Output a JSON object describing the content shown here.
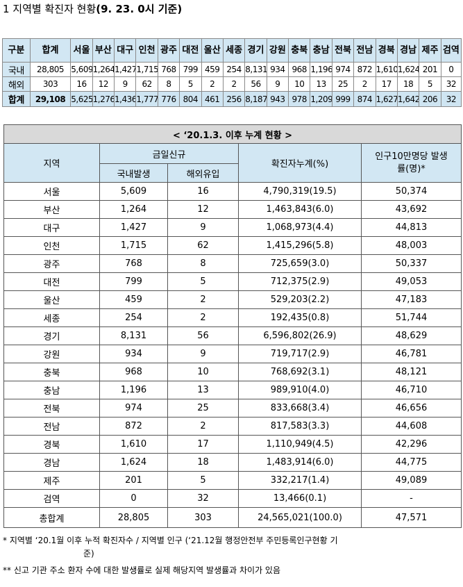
{
  "title": {
    "main": "1 지역별 확진자 현황",
    "date": "(9. 23. 0시 기준)"
  },
  "summary_table": {
    "headers": [
      "구분",
      "합계",
      "서울",
      "부산",
      "대구",
      "인천",
      "광주",
      "대전",
      "울산",
      "세종",
      "경기",
      "강원",
      "충북",
      "충남",
      "전북",
      "전남",
      "경북",
      "경남",
      "제주",
      "검역"
    ],
    "rows": [
      {
        "label": "국내",
        "values": [
          "28,805",
          "5,609",
          "1,264",
          "1,427",
          "1,715",
          "768",
          "799",
          "459",
          "254",
          "8,131",
          "934",
          "968",
          "1,196",
          "974",
          "872",
          "1,610",
          "1,624",
          "201",
          "0"
        ]
      },
      {
        "label": "해외",
        "values": [
          "303",
          "16",
          "12",
          "9",
          "62",
          "8",
          "5",
          "2",
          "2",
          "56",
          "9",
          "10",
          "13",
          "25",
          "2",
          "17",
          "18",
          "5",
          "32"
        ]
      },
      {
        "label": "합계",
        "values": [
          "29,108",
          "5,625",
          "1,276",
          "1,436",
          "1,777",
          "776",
          "804",
          "461",
          "256",
          "8,187",
          "943",
          "978",
          "1,209",
          "999",
          "874",
          "1,627",
          "1,642",
          "206",
          "32"
        ]
      }
    ]
  },
  "detail_table": {
    "caption": "< ‘20.1.3. 이후 누계 현황 >",
    "headers": {
      "region": "지역",
      "today_new": "금일신규",
      "domestic": "국내발생",
      "overseas": "해외유입",
      "cumulative": "확진자누계(%)",
      "rate": "인구10만명당 발생률(명)*"
    },
    "rows": [
      {
        "region": "서울",
        "domestic": "5,609",
        "overseas": "16",
        "cumulative": "4,790,319(19.5)",
        "rate": "50,374"
      },
      {
        "region": "부산",
        "domestic": "1,264",
        "overseas": "12",
        "cumulative": "1,463,843(6.0)",
        "rate": "43,692"
      },
      {
        "region": "대구",
        "domestic": "1,427",
        "overseas": "9",
        "cumulative": "1,068,973(4.4)",
        "rate": "44,813"
      },
      {
        "region": "인천",
        "domestic": "1,715",
        "overseas": "62",
        "cumulative": "1,415,296(5.8)",
        "rate": "48,003"
      },
      {
        "region": "광주",
        "domestic": "768",
        "overseas": "8",
        "cumulative": "725,659(3.0)",
        "rate": "50,337"
      },
      {
        "region": "대전",
        "domestic": "799",
        "overseas": "5",
        "cumulative": "712,375(2.9)",
        "rate": "49,053"
      },
      {
        "region": "울산",
        "domestic": "459",
        "overseas": "2",
        "cumulative": "529,203(2.2)",
        "rate": "47,183"
      },
      {
        "region": "세종",
        "domestic": "254",
        "overseas": "2",
        "cumulative": "192,435(0.8)",
        "rate": "51,744"
      },
      {
        "region": "경기",
        "domestic": "8,131",
        "overseas": "56",
        "cumulative": "6,596,802(26.9)",
        "rate": "48,629"
      },
      {
        "region": "강원",
        "domestic": "934",
        "overseas": "9",
        "cumulative": "719,717(2.9)",
        "rate": "46,781"
      },
      {
        "region": "충북",
        "domestic": "968",
        "overseas": "10",
        "cumulative": "768,692(3.1)",
        "rate": "48,121"
      },
      {
        "region": "충남",
        "domestic": "1,196",
        "overseas": "13",
        "cumulative": "989,910(4.0)",
        "rate": "46,710"
      },
      {
        "region": "전북",
        "domestic": "974",
        "overseas": "25",
        "cumulative": "833,668(3.4)",
        "rate": "46,656"
      },
      {
        "region": "전남",
        "domestic": "872",
        "overseas": "2",
        "cumulative": "817,583(3.3)",
        "rate": "44,608"
      },
      {
        "region": "경북",
        "domestic": "1,610",
        "overseas": "17",
        "cumulative": "1,110,949(4.5)",
        "rate": "42,296"
      },
      {
        "region": "경남",
        "domestic": "1,624",
        "overseas": "18",
        "cumulative": "1,483,914(6.0)",
        "rate": "44,775"
      },
      {
        "region": "제주",
        "domestic": "201",
        "overseas": "5",
        "cumulative": "332,217(1.4)",
        "rate": "49,089"
      },
      {
        "region": "검역",
        "domestic": "0",
        "overseas": "32",
        "cumulative": "13,466(0.1)",
        "rate": "-"
      }
    ],
    "total": {
      "region": "총합계",
      "domestic": "28,805",
      "overseas": "303",
      "cumulative": "24,565,021(100.0)",
      "rate": "47,571"
    }
  },
  "footnotes": {
    "note1": "* 지역별 ‘20.1월 이후 누적 확진자수 / 지역별 인구 (‘21.12월 행정안전부 주민등록인구현황 기",
    "note1_cont": "준)",
    "note2": "** 신고 기관 주소 환자 수에 대한 발생률로 실제 해당지역 발생률과 차이가 있음"
  },
  "colors": {
    "header_bg": "#d2e7f3",
    "caption_bg": "#d9d9d9"
  }
}
